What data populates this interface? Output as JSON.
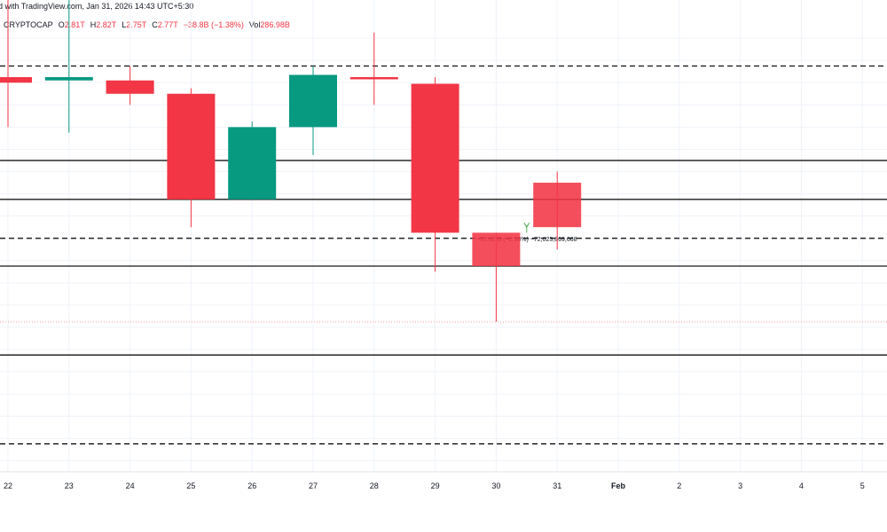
{
  "header": {
    "byline": "d with TradingView.com, Jan 31, 2026 14:43 UTC+5:30",
    "symbol": "CRYPTOCAP",
    "o_label": "O",
    "o_value": "2.81T",
    "h_label": "H",
    "h_value": "2.82T",
    "l_label": "L",
    "l_value": "2.75T",
    "c_label": "C",
    "c_value": "2.77T",
    "change": "−38.8B (−1.38%)",
    "vol_label": "Vol",
    "vol_value": "286.98B"
  },
  "colors": {
    "up": "#089981",
    "down": "#f23645",
    "measure_fill": "#ccffcc",
    "measure_line": "#4caf50"
  },
  "measure": {
    "label": "−72.02 B (−2.53%) −72,023,869,668"
  },
  "chart_data": {
    "type": "candlestick",
    "x_tick_labels": [
      "22",
      "23",
      "24",
      "25",
      "26",
      "27",
      "28",
      "29",
      "30",
      "31",
      "Feb",
      "2",
      "3",
      "4",
      "5"
    ],
    "candles": [
      {
        "date": "22",
        "open": 2.905,
        "high": 2.99,
        "low": 2.86,
        "close": 2.9
      },
      {
        "date": "23",
        "open": 2.902,
        "high": 2.99,
        "low": 2.855,
        "close": 2.905
      },
      {
        "date": "24",
        "open": 2.902,
        "high": 2.915,
        "low": 2.88,
        "close": 2.89
      },
      {
        "date": "25",
        "open": 2.89,
        "high": 2.895,
        "low": 2.77,
        "close": 2.795
      },
      {
        "date": "26",
        "open": 2.795,
        "high": 2.865,
        "low": 2.795,
        "close": 2.86
      },
      {
        "date": "27",
        "open": 2.86,
        "high": 2.915,
        "low": 2.835,
        "close": 2.907
      },
      {
        "date": "28",
        "open": 2.905,
        "high": 2.945,
        "low": 2.88,
        "close": 2.903
      },
      {
        "date": "29",
        "open": 2.899,
        "high": 2.905,
        "low": 2.73,
        "close": 2.765
      },
      {
        "date": "30",
        "open": 2.765,
        "high": 2.765,
        "low": 2.685,
        "close": 2.735
      },
      {
        "date": "31",
        "open": 2.81,
        "high": 2.82,
        "low": 2.75,
        "close": 2.77
      }
    ],
    "horizontal_levels": [
      {
        "value": 2.915,
        "style": "dashed"
      },
      {
        "value": 2.83,
        "style": "solid"
      },
      {
        "value": 2.795,
        "style": "solid"
      },
      {
        "value": 2.76,
        "style": "dashed"
      },
      {
        "value": 2.735,
        "style": "solid"
      },
      {
        "value": 2.655,
        "style": "solid"
      },
      {
        "value": 2.575,
        "style": "dashed"
      }
    ],
    "ylim": [
      2.55,
      2.96
    ],
    "grid": true
  }
}
